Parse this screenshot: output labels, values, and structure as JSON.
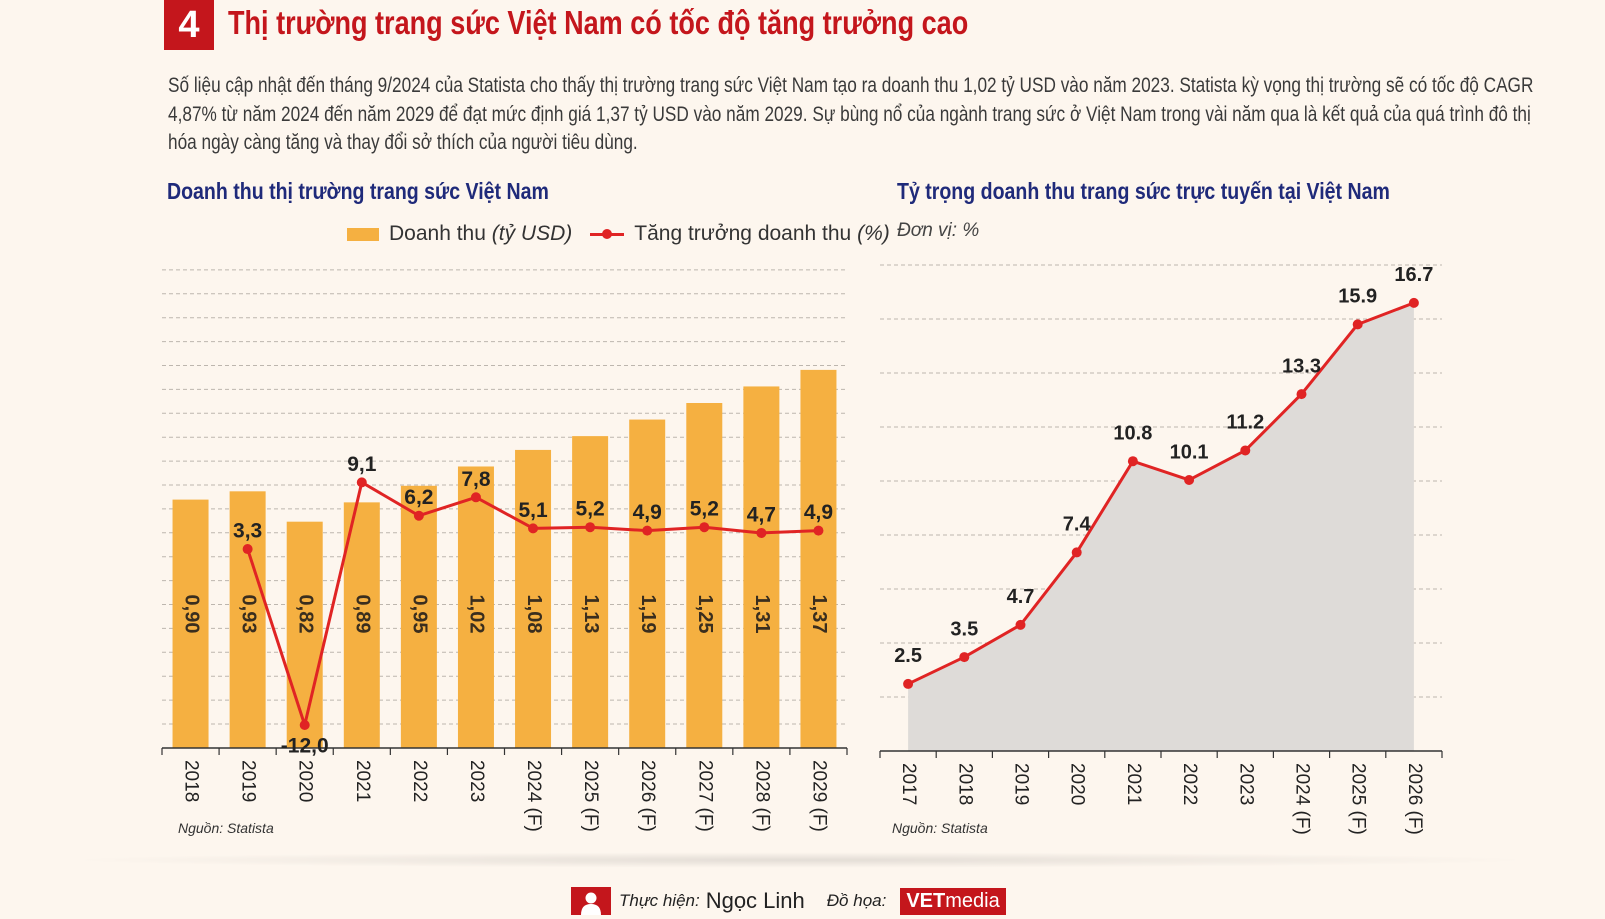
{
  "header": {
    "number": "4",
    "title": "Thị trường trang sức Việt Nam có tốc độ tăng trưởng cao",
    "intro": "Số liệu cập nhật đến tháng 9/2024 của Statista cho thấy thị trường trang sức Việt Nam tạo ra doanh thu 1,02 tỷ USD vào năm 2023. Statista kỳ vọng thị trường sẽ có tốc độ CAGR 4,87% từ năm 2024 đến năm 2029 để đạt mức định giá 1,37 tỷ USD vào năm 2029. Sự bùng nổ của ngành trang sức ở Việt Nam trong vài năm qua là kết quả của quá trình đô thị hóa ngày càng tăng và thay đổi sở thích của người tiêu dùng."
  },
  "colors": {
    "accent": "#c4161c",
    "title_blue": "#1f2a7a",
    "bar": "#f5b041",
    "line": "#e02424",
    "area": "#dedbd8"
  },
  "left": {
    "legend_bar": "Doanh thu",
    "legend_bar_unit": "(tỷ USD)",
    "legend_line": "Tăng trưởng doanh thu",
    "legend_line_unit": "(%)",
    "source": "Nguồn: Statista"
  },
  "right": {
    "unit": "Đơn vị: %",
    "source": "Nguồn: Statista"
  },
  "footer": {
    "credit_label": "Thực hiện:",
    "author": "Ngọc Linh",
    "graphics_label": "Đồ họa:",
    "brand_bold": "VET",
    "brand_rest": "media"
  },
  "chart_data": [
    {
      "type": "bar",
      "title": "Doanh thu thị trường trang sức Việt Nam",
      "categories": [
        "2018",
        "2019",
        "2020",
        "2021",
        "2022",
        "2023",
        "2024 (F)",
        "2025 (F)",
        "2026 (F)",
        "2027 (F)",
        "2028 (F)",
        "2029 (F)"
      ],
      "series": [
        {
          "name": "Doanh thu (tỷ USD)",
          "type": "bar",
          "values": [
            0.9,
            0.93,
            0.82,
            0.89,
            0.95,
            1.02,
            1.08,
            1.13,
            1.19,
            1.25,
            1.31,
            1.37
          ],
          "labels": [
            "0,90",
            "0,93",
            "0,82",
            "0,89",
            "0,95",
            "1,02",
            "1,08",
            "1,13",
            "1,19",
            "1,25",
            "1,31",
            "1,37"
          ]
        },
        {
          "name": "Tăng trưởng doanh thu (%)",
          "type": "line",
          "values": [
            null,
            3.3,
            -12.0,
            9.1,
            6.2,
            7.8,
            5.1,
            5.2,
            4.9,
            5.2,
            4.7,
            4.9
          ],
          "labels": [
            null,
            "3,3",
            "-12,0",
            "9,1",
            "6,2",
            "7,8",
            "5,1",
            "5,2",
            "4,9",
            "5,2",
            "4,7",
            "4,9"
          ]
        }
      ],
      "ylim_bar": [
        0,
        1.75
      ],
      "ylim_line": [
        -14,
        28
      ],
      "grid": true
    },
    {
      "type": "area",
      "title": "Tỷ trọng doanh thu trang sức trực tuyến tại Việt Nam",
      "categories": [
        "2017",
        "2018",
        "2019",
        "2020",
        "2021",
        "2022",
        "2023",
        "2024 (F)",
        "2025 (F)",
        "2026 (F)"
      ],
      "values": [
        2.5,
        3.5,
        4.7,
        7.4,
        10.8,
        10.1,
        11.2,
        13.3,
        15.9,
        16.7
      ],
      "labels": [
        "2.5",
        "3.5",
        "4.7",
        "7.4",
        "10.8",
        "10.1",
        "11.2",
        "13.3",
        "15.9",
        "16.7"
      ],
      "ylim": [
        0,
        18
      ],
      "grid": true
    }
  ]
}
